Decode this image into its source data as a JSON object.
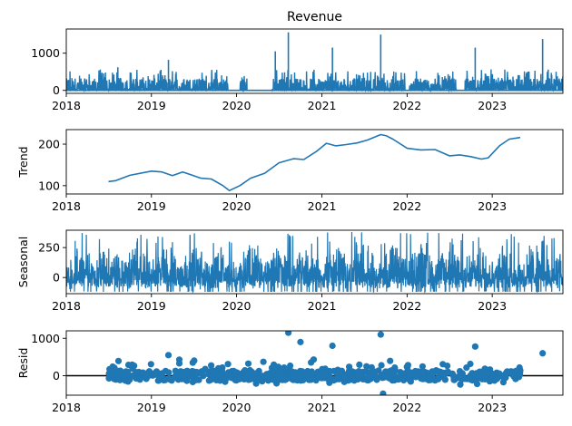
{
  "chart_data": [
    {
      "type": "line",
      "panel": "observed",
      "title": "Revenue",
      "ylabel": "",
      "xlim": [
        "2018-01-01",
        "2023-10-31"
      ],
      "ylim": [
        -80,
        1650
      ],
      "x_ticks": [
        "2018",
        "2019",
        "2020",
        "2021",
        "2022",
        "2023"
      ],
      "y_ticks": [
        0,
        1000
      ],
      "gaps": [
        [
          "2019-11-25",
          "2020-01-15"
        ],
        [
          "2020-02-15",
          "2020-05-30"
        ],
        [
          "2021-12-25",
          "2022-01-10"
        ],
        [
          "2022-08-01",
          "2022-09-05"
        ]
      ],
      "peaks": [
        {
          "x": "2020-08-10",
          "y": 1560
        },
        {
          "x": "2021-09-10",
          "y": 1500
        },
        {
          "x": "2020-06-15",
          "y": 1050
        },
        {
          "x": "2023-08-05",
          "y": 1380
        },
        {
          "x": "2021-02-15",
          "y": 1150
        },
        {
          "x": "2022-10-20",
          "y": 1150
        },
        {
          "x": "2019-03-15",
          "y": 820
        },
        {
          "x": "2018-08-10",
          "y": 620
        }
      ],
      "color": "#1f77b4"
    },
    {
      "type": "line",
      "panel": "trend",
      "ylabel": "Trend",
      "xlim": [
        "2018-01-01",
        "2023-10-31"
      ],
      "ylim": [
        80,
        235
      ],
      "x_ticks": [
        "2018",
        "2019",
        "2020",
        "2021",
        "2022",
        "2023"
      ],
      "y_ticks": [
        100,
        200
      ],
      "x": [
        "2018-07-01",
        "2018-08-01",
        "2018-10-01",
        "2019-01-01",
        "2019-02-15",
        "2019-04-01",
        "2019-05-15",
        "2019-06-20",
        "2019-08-01",
        "2019-09-15",
        "2019-11-01",
        "2019-12-01",
        "2020-01-15",
        "2020-03-01",
        "2020-05-01",
        "2020-07-01",
        "2020-09-01",
        "2020-10-15",
        "2020-12-10",
        "2021-01-20",
        "2021-03-01",
        "2021-04-15",
        "2021-06-01",
        "2021-07-15",
        "2021-09-10",
        "2021-10-05",
        "2021-11-01",
        "2022-01-01",
        "2022-03-01",
        "2022-05-01",
        "2022-07-01",
        "2022-08-15",
        "2022-10-01",
        "2022-11-15",
        "2022-12-15",
        "2023-02-01",
        "2023-03-15",
        "2023-05-01"
      ],
      "y": [
        110,
        112,
        125,
        135,
        133,
        124,
        133,
        126,
        118,
        116,
        101,
        88,
        100,
        118,
        130,
        155,
        165,
        163,
        183,
        202,
        196,
        199,
        203,
        210,
        223,
        220,
        212,
        190,
        186,
        187,
        172,
        174,
        170,
        164,
        167,
        196,
        212,
        216
      ],
      "color": "#1f77b4"
    },
    {
      "type": "line",
      "panel": "seasonal",
      "ylabel": "Seasonal",
      "xlim": [
        "2018-01-01",
        "2023-10-31"
      ],
      "ylim": [
        -135,
        395
      ],
      "x_ticks": [
        "2018",
        "2019",
        "2020",
        "2021",
        "2022",
        "2023"
      ],
      "y_ticks": [
        0,
        250
      ],
      "amplitude": [
        -120,
        380
      ],
      "period_days": 365,
      "color": "#1f77b4"
    },
    {
      "type": "scatter",
      "panel": "resid",
      "ylabel": "Resid",
      "xlim": [
        "2018-01-01",
        "2023-10-31"
      ],
      "ylim": [
        -520,
        1200
      ],
      "x_ticks": [
        "2018",
        "2019",
        "2020",
        "2021",
        "2022",
        "2023"
      ],
      "y_ticks": [
        0,
        1000
      ],
      "x_range": [
        "2018-07-01",
        "2023-05-01"
      ],
      "outliers": [
        {
          "x": "2020-08-10",
          "y": 1150
        },
        {
          "x": "2021-09-10",
          "y": 1100
        },
        {
          "x": "2020-10-01",
          "y": 900
        },
        {
          "x": "2021-02-15",
          "y": 800
        },
        {
          "x": "2022-10-20",
          "y": 780
        },
        {
          "x": "2023-08-05",
          "y": 600
        },
        {
          "x": "2019-03-15",
          "y": 550
        },
        {
          "x": "2021-09-20",
          "y": -480
        }
      ],
      "zero_line_color": "#000000",
      "color": "#1f77b4"
    }
  ]
}
